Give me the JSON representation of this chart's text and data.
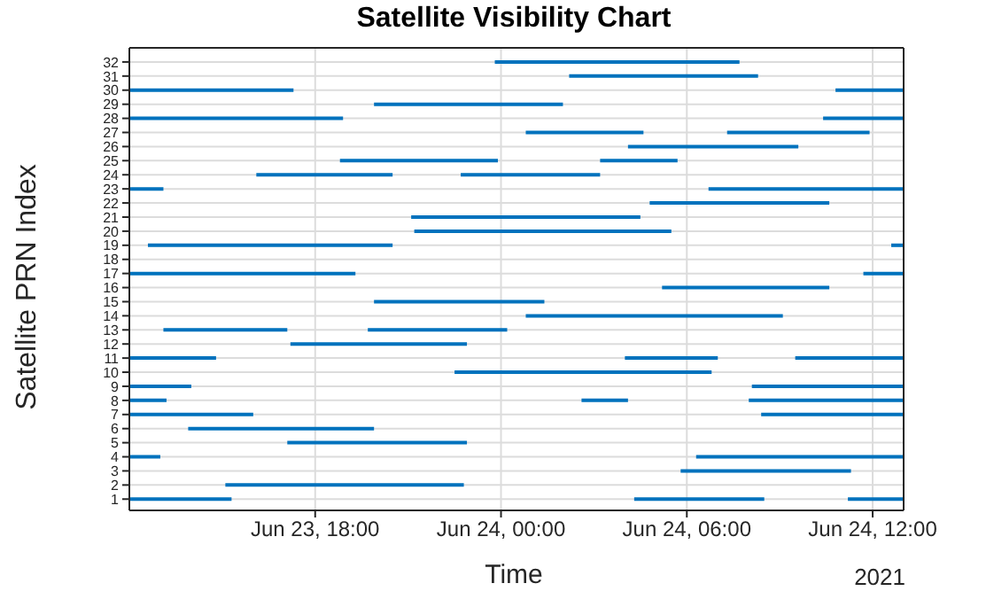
{
  "chart_data": {
    "type": "line",
    "title": "Satellite Visibility Chart",
    "xlabel": "Time",
    "ylabel": "Satellite PRN Index",
    "annotations": [
      "2021"
    ],
    "xlim": [
      "2021-06-23T12:00",
      "2021-06-24T13:00"
    ],
    "xticks": [
      {
        "value": "2021-06-23T18:00",
        "label": "Jun 23, 18:00"
      },
      {
        "value": "2021-06-24T00:00",
        "label": "Jun 24, 00:00"
      },
      {
        "value": "2021-06-24T06:00",
        "label": "Jun 24, 06:00"
      },
      {
        "value": "2021-06-24T12:00",
        "label": "Jun 24, 12:00"
      }
    ],
    "ylim": [
      0.2,
      33
    ],
    "yticks": [
      1,
      2,
      3,
      4,
      5,
      6,
      7,
      8,
      9,
      10,
      11,
      12,
      13,
      14,
      15,
      16,
      17,
      18,
      19,
      20,
      21,
      22,
      23,
      24,
      25,
      26,
      27,
      28,
      29,
      30,
      31,
      32
    ],
    "grid": true,
    "series": [
      {
        "color": "#0072bd",
        "x": [
          "2021-06-23T23:48",
          "2021-06-24T07:42"
        ],
        "values": [
          32,
          32
        ]
      },
      {
        "color": "#0072bd",
        "x": [
          "2021-06-24T02:12",
          "2021-06-24T08:18"
        ],
        "values": [
          31,
          31
        ]
      },
      {
        "color": "#0072bd",
        "x": [
          "2021-06-23T12:00",
          "2021-06-23T17:18"
        ],
        "values": [
          30,
          30
        ]
      },
      {
        "color": "#0072bd",
        "x": [
          "2021-06-24T10:48",
          "2021-06-24T13:00"
        ],
        "values": [
          30,
          30
        ]
      },
      {
        "color": "#0072bd",
        "x": [
          "2021-06-23T19:54",
          "2021-06-24T02:00"
        ],
        "values": [
          29,
          29
        ]
      },
      {
        "color": "#0072bd",
        "x": [
          "2021-06-23T12:00",
          "2021-06-23T18:54"
        ],
        "values": [
          28,
          28
        ]
      },
      {
        "color": "#0072bd",
        "x": [
          "2021-06-24T10:24",
          "2021-06-24T13:00"
        ],
        "values": [
          28,
          28
        ]
      },
      {
        "color": "#0072bd",
        "x": [
          "2021-06-24T00:48",
          "2021-06-24T04:36"
        ],
        "values": [
          27,
          27
        ]
      },
      {
        "color": "#0072bd",
        "x": [
          "2021-06-24T07:18",
          "2021-06-24T11:54"
        ],
        "values": [
          27,
          27
        ]
      },
      {
        "color": "#0072bd",
        "x": [
          "2021-06-24T04:06",
          "2021-06-24T09:36"
        ],
        "values": [
          26,
          26
        ]
      },
      {
        "color": "#0072bd",
        "x": [
          "2021-06-23T18:48",
          "2021-06-23T23:54"
        ],
        "values": [
          25,
          25
        ]
      },
      {
        "color": "#0072bd",
        "x": [
          "2021-06-24T03:12",
          "2021-06-24T05:42"
        ],
        "values": [
          25,
          25
        ]
      },
      {
        "color": "#0072bd",
        "x": [
          "2021-06-23T16:06",
          "2021-06-23T20:30"
        ],
        "values": [
          24,
          24
        ]
      },
      {
        "color": "#0072bd",
        "x": [
          "2021-06-23T22:42",
          "2021-06-24T03:12"
        ],
        "values": [
          24,
          24
        ]
      },
      {
        "color": "#0072bd",
        "x": [
          "2021-06-23T12:00",
          "2021-06-23T13:06"
        ],
        "values": [
          23,
          23
        ]
      },
      {
        "color": "#0072bd",
        "x": [
          "2021-06-24T06:42",
          "2021-06-24T13:00"
        ],
        "values": [
          23,
          23
        ]
      },
      {
        "color": "#0072bd",
        "x": [
          "2021-06-24T04:48",
          "2021-06-24T10:36"
        ],
        "values": [
          22,
          22
        ]
      },
      {
        "color": "#0072bd",
        "x": [
          "2021-06-23T21:06",
          "2021-06-24T04:30"
        ],
        "values": [
          21,
          21
        ]
      },
      {
        "color": "#0072bd",
        "x": [
          "2021-06-23T21:12",
          "2021-06-24T05:30"
        ],
        "values": [
          20,
          20
        ]
      },
      {
        "color": "#0072bd",
        "x": [
          "2021-06-23T12:36",
          "2021-06-23T20:30"
        ],
        "values": [
          19,
          19
        ]
      },
      {
        "color": "#0072bd",
        "x": [
          "2021-06-24T12:36",
          "2021-06-24T13:00"
        ],
        "values": [
          19,
          19
        ]
      },
      {
        "color": "#0072bd",
        "x": [
          "2021-06-23T12:00",
          "2021-06-23T19:18"
        ],
        "values": [
          17,
          17
        ]
      },
      {
        "color": "#0072bd",
        "x": [
          "2021-06-24T11:42",
          "2021-06-24T13:00"
        ],
        "values": [
          17,
          17
        ]
      },
      {
        "color": "#0072bd",
        "x": [
          "2021-06-24T05:12",
          "2021-06-24T10:36"
        ],
        "values": [
          16,
          16
        ]
      },
      {
        "color": "#0072bd",
        "x": [
          "2021-06-23T19:54",
          "2021-06-24T01:24"
        ],
        "values": [
          15,
          15
        ]
      },
      {
        "color": "#0072bd",
        "x": [
          "2021-06-24T00:48",
          "2021-06-24T09:06"
        ],
        "values": [
          14,
          14
        ]
      },
      {
        "color": "#0072bd",
        "x": [
          "2021-06-23T13:06",
          "2021-06-23T17:06"
        ],
        "values": [
          13,
          13
        ]
      },
      {
        "color": "#0072bd",
        "x": [
          "2021-06-23T19:42",
          "2021-06-24T00:12"
        ],
        "values": [
          13,
          13
        ]
      },
      {
        "color": "#0072bd",
        "x": [
          "2021-06-23T17:12",
          "2021-06-23T22:54"
        ],
        "values": [
          12,
          12
        ]
      },
      {
        "color": "#0072bd",
        "x": [
          "2021-06-23T12:00",
          "2021-06-23T14:48"
        ],
        "values": [
          11,
          11
        ]
      },
      {
        "color": "#0072bd",
        "x": [
          "2021-06-24T04:00",
          "2021-06-24T07:00"
        ],
        "values": [
          11,
          11
        ]
      },
      {
        "color": "#0072bd",
        "x": [
          "2021-06-24T09:30",
          "2021-06-24T13:00"
        ],
        "values": [
          11,
          11
        ]
      },
      {
        "color": "#0072bd",
        "x": [
          "2021-06-23T22:30",
          "2021-06-24T06:48"
        ],
        "values": [
          10,
          10
        ]
      },
      {
        "color": "#0072bd",
        "x": [
          "2021-06-23T12:00",
          "2021-06-23T14:00"
        ],
        "values": [
          9,
          9
        ]
      },
      {
        "color": "#0072bd",
        "x": [
          "2021-06-24T08:06",
          "2021-06-24T13:00"
        ],
        "values": [
          9,
          9
        ]
      },
      {
        "color": "#0072bd",
        "x": [
          "2021-06-23T12:00",
          "2021-06-23T13:12"
        ],
        "values": [
          8,
          8
        ]
      },
      {
        "color": "#0072bd",
        "x": [
          "2021-06-24T02:36",
          "2021-06-24T04:06"
        ],
        "values": [
          8,
          8
        ]
      },
      {
        "color": "#0072bd",
        "x": [
          "2021-06-24T08:00",
          "2021-06-24T13:00"
        ],
        "values": [
          8,
          8
        ]
      },
      {
        "color": "#0072bd",
        "x": [
          "2021-06-23T12:00",
          "2021-06-23T16:00"
        ],
        "values": [
          7,
          7
        ]
      },
      {
        "color": "#0072bd",
        "x": [
          "2021-06-24T08:24",
          "2021-06-24T13:00"
        ],
        "values": [
          7,
          7
        ]
      },
      {
        "color": "#0072bd",
        "x": [
          "2021-06-23T13:54",
          "2021-06-23T19:54"
        ],
        "values": [
          6,
          6
        ]
      },
      {
        "color": "#0072bd",
        "x": [
          "2021-06-23T17:06",
          "2021-06-23T22:54"
        ],
        "values": [
          5,
          5
        ]
      },
      {
        "color": "#0072bd",
        "x": [
          "2021-06-23T12:00",
          "2021-06-23T13:00"
        ],
        "values": [
          4,
          4
        ]
      },
      {
        "color": "#0072bd",
        "x": [
          "2021-06-24T06:18",
          "2021-06-24T13:00"
        ],
        "values": [
          4,
          4
        ]
      },
      {
        "color": "#0072bd",
        "x": [
          "2021-06-24T05:48",
          "2021-06-24T11:18"
        ],
        "values": [
          3,
          3
        ]
      },
      {
        "color": "#0072bd",
        "x": [
          "2021-06-23T15:06",
          "2021-06-23T22:48"
        ],
        "values": [
          2,
          2
        ]
      },
      {
        "color": "#0072bd",
        "x": [
          "2021-06-23T12:00",
          "2021-06-23T15:18"
        ],
        "values": [
          1,
          1
        ]
      },
      {
        "color": "#0072bd",
        "x": [
          "2021-06-24T04:18",
          "2021-06-24T08:30"
        ],
        "values": [
          1,
          1
        ]
      },
      {
        "color": "#0072bd",
        "x": [
          "2021-06-24T11:12",
          "2021-06-24T13:00"
        ],
        "values": [
          1,
          1
        ]
      }
    ]
  }
}
